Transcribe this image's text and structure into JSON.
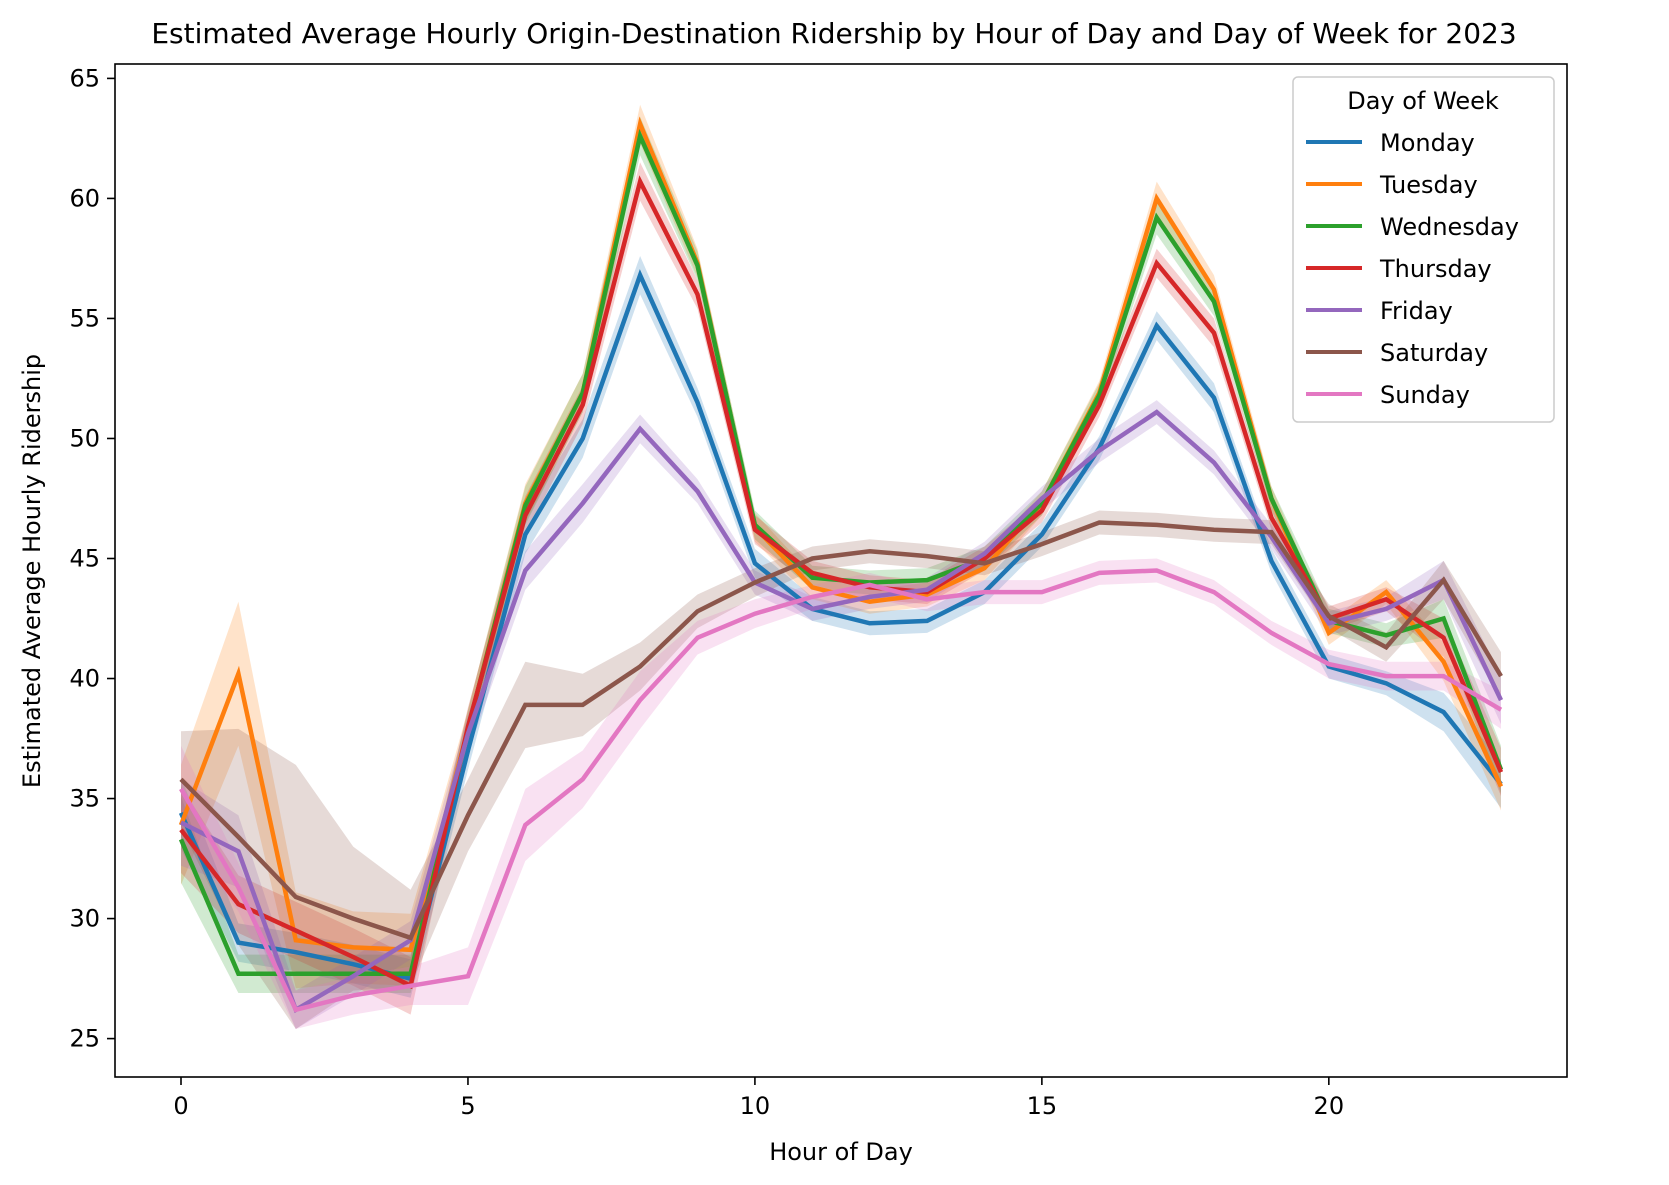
{
  "chart_data": {
    "type": "line",
    "title": "Estimated Average Hourly Origin-Destination Ridership by Hour of Day and Day of Week for 2023",
    "xlabel": "Hour of Day",
    "ylabel": "Estimated Average Hourly Ridership",
    "xlim": [
      -1.15,
      24.15
    ],
    "ylim": [
      23.4,
      65.6
    ],
    "xticks": [
      0,
      5,
      10,
      15,
      20
    ],
    "yticks": [
      25,
      30,
      35,
      40,
      45,
      50,
      55,
      60,
      65
    ],
    "grid": false,
    "legend": {
      "title": "Day of Week",
      "placement": "top-right"
    },
    "confidence_bands": true,
    "x": [
      0,
      1,
      2,
      3,
      4,
      5,
      6,
      7,
      8,
      9,
      10,
      11,
      12,
      13,
      14,
      15,
      16,
      17,
      18,
      19,
      20,
      21,
      22,
      23
    ],
    "series": [
      {
        "name": "Monday",
        "color": "#1f77b4",
        "values": [
          34.4,
          29.0,
          28.6,
          28.1,
          27.5,
          37.0,
          46.0,
          50.0,
          56.8,
          51.5,
          44.8,
          42.9,
          42.3,
          42.4,
          43.6,
          46.0,
          49.6,
          54.7,
          51.7,
          44.9,
          40.5,
          39.8,
          38.6,
          35.6
        ],
        "band": [
          1.5,
          0.8,
          0.8,
          0.8,
          0.8,
          0.8,
          0.8,
          0.8,
          0.8,
          0.6,
          0.6,
          0.5,
          0.5,
          0.5,
          0.5,
          0.5,
          0.5,
          0.6,
          0.6,
          0.5,
          0.5,
          0.5,
          0.8,
          1.0
        ]
      },
      {
        "name": "Tuesday",
        "color": "#ff7f0e",
        "values": [
          33.9,
          40.2,
          29.1,
          28.8,
          28.7,
          37.9,
          47.3,
          51.9,
          63.1,
          57.3,
          46.3,
          43.8,
          43.2,
          43.5,
          44.6,
          47.3,
          51.9,
          60.0,
          56.2,
          47.5,
          41.9,
          43.6,
          40.7,
          35.5
        ],
        "band": [
          2.5,
          3.0,
          2.0,
          1.5,
          1.5,
          0.8,
          0.8,
          0.8,
          0.8,
          0.6,
          0.6,
          0.5,
          0.5,
          0.5,
          0.5,
          0.5,
          0.5,
          0.7,
          0.6,
          0.5,
          0.5,
          0.5,
          0.8,
          1.0
        ]
      },
      {
        "name": "Wednesday",
        "color": "#2ca02c",
        "values": [
          33.3,
          27.7,
          27.7,
          27.7,
          27.7,
          37.9,
          47.2,
          51.9,
          62.6,
          57.2,
          46.4,
          44.2,
          44.0,
          44.1,
          45.0,
          47.3,
          51.8,
          59.2,
          55.7,
          47.5,
          42.4,
          41.8,
          42.5,
          36.2
        ],
        "band": [
          1.8,
          0.8,
          0.8,
          0.8,
          0.8,
          0.8,
          0.8,
          0.8,
          0.8,
          0.6,
          0.6,
          0.5,
          0.5,
          0.5,
          0.5,
          0.5,
          0.5,
          0.7,
          0.6,
          0.5,
          0.5,
          0.5,
          0.8,
          1.0
        ]
      },
      {
        "name": "Thursday",
        "color": "#d62728",
        "values": [
          33.7,
          30.6,
          29.5,
          28.4,
          27.2,
          38.0,
          46.8,
          51.4,
          60.7,
          56.0,
          46.2,
          44.4,
          43.8,
          43.6,
          45.0,
          47.0,
          51.4,
          57.3,
          54.4,
          46.7,
          42.5,
          43.3,
          41.7,
          36.1
        ],
        "band": [
          1.8,
          1.2,
          1.2,
          1.2,
          1.2,
          0.8,
          0.8,
          0.8,
          0.8,
          0.6,
          0.6,
          0.5,
          0.5,
          0.5,
          0.5,
          0.5,
          0.5,
          0.6,
          0.6,
          0.5,
          0.5,
          0.5,
          0.8,
          1.0
        ]
      },
      {
        "name": "Friday",
        "color": "#9467bd",
        "values": [
          34.0,
          32.8,
          26.2,
          27.6,
          29.1,
          37.7,
          44.5,
          47.3,
          50.4,
          47.8,
          44.0,
          42.9,
          43.4,
          43.7,
          45.2,
          47.5,
          49.5,
          51.1,
          49.0,
          45.9,
          42.3,
          42.9,
          44.1,
          39.1
        ],
        "band": [
          1.8,
          1.5,
          0.8,
          0.8,
          0.8,
          0.8,
          0.8,
          0.8,
          0.6,
          0.5,
          0.5,
          0.5,
          0.5,
          0.5,
          0.5,
          0.5,
          0.5,
          0.5,
          0.5,
          0.5,
          0.5,
          0.5,
          0.8,
          1.0
        ]
      },
      {
        "name": "Saturday",
        "color": "#8c564b",
        "values": [
          35.8,
          33.4,
          30.9,
          30.0,
          29.2,
          34.3,
          38.9,
          38.9,
          40.5,
          42.8,
          44.0,
          45.0,
          45.3,
          45.1,
          44.8,
          45.6,
          46.5,
          46.4,
          46.2,
          46.1,
          42.6,
          41.3,
          44.1,
          40.1
        ],
        "band": [
          2.0,
          4.5,
          5.5,
          3.0,
          2.0,
          1.5,
          1.8,
          1.3,
          1.0,
          0.7,
          0.6,
          0.5,
          0.5,
          0.5,
          0.5,
          0.5,
          0.5,
          0.5,
          0.5,
          0.5,
          0.5,
          0.6,
          0.8,
          1.0
        ]
      },
      {
        "name": "Sunday",
        "color": "#e377c2",
        "values": [
          35.4,
          31.3,
          26.2,
          26.8,
          27.2,
          27.6,
          33.9,
          35.8,
          39.1,
          41.7,
          42.7,
          43.4,
          43.9,
          43.3,
          43.6,
          43.6,
          44.4,
          44.5,
          43.6,
          41.9,
          40.6,
          40.1,
          40.1,
          38.7
        ],
        "band": [
          1.8,
          1.0,
          0.8,
          0.8,
          0.8,
          1.2,
          1.5,
          1.2,
          1.2,
          0.7,
          0.6,
          0.5,
          0.5,
          0.5,
          0.5,
          0.5,
          0.5,
          0.5,
          0.5,
          0.5,
          0.6,
          0.6,
          0.6,
          0.8
        ]
      }
    ]
  }
}
